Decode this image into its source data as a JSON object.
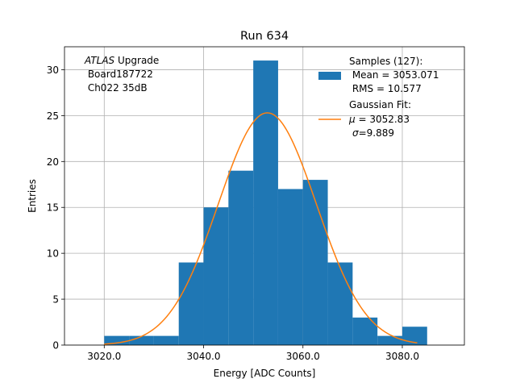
{
  "chart_data": {
    "type": "histogram",
    "title": "Run 634",
    "xlabel": "Energy [ADC Counts]",
    "ylabel": "Entries",
    "xlim": [
      3012.0,
      3092.5
    ],
    "ylim": [
      0,
      32.5
    ],
    "grid": true,
    "xticks": [
      3020.0,
      3040.0,
      3060.0,
      3080.0
    ],
    "xtick_labels": [
      "3020.0",
      "3040.0",
      "3060.0",
      "3080.0"
    ],
    "yticks": [
      0,
      5,
      10,
      15,
      20,
      25,
      30
    ],
    "ytick_labels": [
      "0",
      "5",
      "10",
      "15",
      "20",
      "25",
      "30"
    ],
    "histogram": {
      "color": "#1f77b4",
      "bins": [
        {
          "x0": 3020.0,
          "x1": 3025.0,
          "count": 1
        },
        {
          "x0": 3025.0,
          "x1": 3030.0,
          "count": 1
        },
        {
          "x0": 3030.0,
          "x1": 3035.0,
          "count": 1
        },
        {
          "x0": 3035.0,
          "x1": 3040.0,
          "count": 9
        },
        {
          "x0": 3040.0,
          "x1": 3045.0,
          "count": 15
        },
        {
          "x0": 3045.0,
          "x1": 3050.0,
          "count": 19
        },
        {
          "x0": 3050.0,
          "x1": 3055.0,
          "count": 31
        },
        {
          "x0": 3055.0,
          "x1": 3060.0,
          "count": 17
        },
        {
          "x0": 3060.0,
          "x1": 3065.0,
          "count": 18
        },
        {
          "x0": 3065.0,
          "x1": 3070.0,
          "count": 9
        },
        {
          "x0": 3070.0,
          "x1": 3075.0,
          "count": 3
        },
        {
          "x0": 3075.0,
          "x1": 3080.0,
          "count": 1
        },
        {
          "x0": 3080.0,
          "x1": 3085.0,
          "count": 2
        }
      ]
    },
    "gaussian_fit": {
      "color": "#ff7f0e",
      "mu": 3052.83,
      "sigma": 9.889,
      "amplitude": 25.3,
      "x_range": [
        3020.0,
        3083.0
      ]
    },
    "legend": {
      "location": "upper right",
      "samples_line1": "Samples (127):",
      "samples_line2": " Mean = 3053.071",
      "samples_line3": " RMS = 10.577",
      "fit_line1": "Gaussian Fit:",
      "fit_line2_symbol": "μ",
      "fit_line2_rest": " = 3052.83",
      "fit_line3_symbol": "σ",
      "fit_line3_rest": "=9.889"
    },
    "annotation": {
      "line1_italic": "ATLAS",
      "line1_rest": " Upgrade",
      "line2": " Board187722",
      "line3": " Ch022 35dB"
    }
  }
}
